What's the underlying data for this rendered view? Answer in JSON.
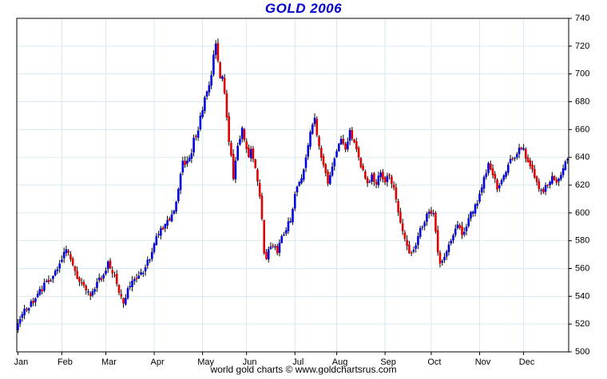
{
  "title": "GOLD 2006",
  "footer": "world gold charts © www.goldchartsrus.com",
  "colors": {
    "title": "#0000cc",
    "up": "#0000e0",
    "down": "#e00000",
    "wick": "#000000",
    "grid": "#d7e8f2",
    "axis": "#000000",
    "label": "#000000",
    "background": "#ffffff"
  },
  "chart_data": {
    "type": "candlestick_ohlc",
    "title": "GOLD 2006",
    "legend": "none",
    "grid": "on",
    "x_axis": {
      "months": [
        "Jan",
        "Feb",
        "Mar",
        "Apr",
        "May",
        "Jun",
        "Jul",
        "Aug",
        "Sep",
        "Oct",
        "Nov",
        "Dec"
      ],
      "month_start_day_index": [
        0,
        20,
        40,
        62,
        84,
        104,
        126,
        145,
        167,
        188,
        210,
        230
      ],
      "trading_days": 251
    },
    "y_axis": {
      "min": 500,
      "max": 740,
      "tick_step": 20,
      "ticks": [
        740,
        720,
        700,
        680,
        660,
        640,
        620,
        600,
        580,
        560,
        540,
        520,
        500
      ],
      "side": "right"
    },
    "key_points": [
      {
        "label": "year-start",
        "day": 0,
        "price": 521
      },
      {
        "label": "early-Feb high",
        "day": 22,
        "price": 575
      },
      {
        "label": "mid-Mar low",
        "day": 48,
        "price": 537
      },
      {
        "label": "mid-May peak",
        "day": 90,
        "price": 724
      },
      {
        "label": "mid-Jun low",
        "day": 113,
        "price": 565
      },
      {
        "label": "mid-Jul high",
        "day": 135,
        "price": 668
      },
      {
        "label": "early-Oct low",
        "day": 192,
        "price": 563
      },
      {
        "label": "early-Dec high",
        "day": 229,
        "price": 648
      },
      {
        "label": "year-end",
        "day": 250,
        "price": 637
      }
    ],
    "close_anchors": [
      [
        0,
        521
      ],
      [
        2,
        528
      ],
      [
        5,
        533
      ],
      [
        9,
        541
      ],
      [
        13,
        550
      ],
      [
        17,
        557
      ],
      [
        20,
        568
      ],
      [
        22,
        575
      ],
      [
        25,
        562
      ],
      [
        27,
        554
      ],
      [
        31,
        546
      ],
      [
        33,
        540
      ],
      [
        36,
        549
      ],
      [
        39,
        556
      ],
      [
        41,
        563
      ],
      [
        44,
        554
      ],
      [
        46,
        541
      ],
      [
        48,
        537
      ],
      [
        51,
        548
      ],
      [
        54,
        553
      ],
      [
        57,
        557
      ],
      [
        60,
        568
      ],
      [
        62,
        580
      ],
      [
        64,
        585
      ],
      [
        66,
        590
      ],
      [
        68,
        594
      ],
      [
        70,
        598
      ],
      [
        72,
        606
      ],
      [
        73,
        618
      ],
      [
        74,
        628
      ],
      [
        75,
        638
      ],
      [
        76,
        633
      ],
      [
        78,
        638
      ],
      [
        80,
        652
      ],
      [
        82,
        660
      ],
      [
        84,
        676
      ],
      [
        86,
        688
      ],
      [
        88,
        700
      ],
      [
        89,
        712
      ],
      [
        90,
        724
      ],
      [
        91,
        708
      ],
      [
        92,
        695
      ],
      [
        93,
        698
      ],
      [
        94,
        685
      ],
      [
        95,
        668
      ],
      [
        96,
        652
      ],
      [
        97,
        640
      ],
      [
        98,
        626
      ],
      [
        99,
        638
      ],
      [
        100,
        648
      ],
      [
        101,
        655
      ],
      [
        102,
        660
      ],
      [
        103,
        652
      ],
      [
        105,
        640
      ],
      [
        106,
        648
      ],
      [
        107,
        640
      ],
      [
        108,
        632
      ],
      [
        109,
        622
      ],
      [
        110,
        612
      ],
      [
        111,
        596
      ],
      [
        112,
        572
      ],
      [
        113,
        565
      ],
      [
        114,
        574
      ],
      [
        116,
        578
      ],
      [
        118,
        571
      ],
      [
        120,
        582
      ],
      [
        122,
        588
      ],
      [
        124,
        596
      ],
      [
        125,
        604
      ],
      [
        126,
        614
      ],
      [
        128,
        621
      ],
      [
        130,
        633
      ],
      [
        132,
        648
      ],
      [
        133,
        658
      ],
      [
        134,
        664
      ],
      [
        135,
        668
      ],
      [
        136,
        657
      ],
      [
        137,
        648
      ],
      [
        139,
        634
      ],
      [
        141,
        620
      ],
      [
        143,
        632
      ],
      [
        145,
        644
      ],
      [
        147,
        653
      ],
      [
        149,
        647
      ],
      [
        151,
        659
      ],
      [
        153,
        650
      ],
      [
        155,
        638
      ],
      [
        157,
        629
      ],
      [
        159,
        620
      ],
      [
        161,
        627
      ],
      [
        163,
        622
      ],
      [
        165,
        629
      ],
      [
        167,
        622
      ],
      [
        169,
        628
      ],
      [
        171,
        618
      ],
      [
        173,
        600
      ],
      [
        175,
        586
      ],
      [
        177,
        576
      ],
      [
        179,
        570
      ],
      [
        181,
        575
      ],
      [
        183,
        589
      ],
      [
        185,
        595
      ],
      [
        187,
        601
      ],
      [
        189,
        598
      ],
      [
        190,
        588
      ],
      [
        191,
        572
      ],
      [
        192,
        563
      ],
      [
        194,
        570
      ],
      [
        196,
        577
      ],
      [
        198,
        583
      ],
      [
        200,
        590
      ],
      [
        202,
        585
      ],
      [
        204,
        591
      ],
      [
        206,
        599
      ],
      [
        208,
        605
      ],
      [
        210,
        612
      ],
      [
        212,
        625
      ],
      [
        214,
        634
      ],
      [
        216,
        626
      ],
      [
        218,
        619
      ],
      [
        220,
        624
      ],
      [
        222,
        629
      ],
      [
        224,
        637
      ],
      [
        226,
        640
      ],
      [
        228,
        645
      ],
      [
        229,
        648
      ],
      [
        231,
        641
      ],
      [
        233,
        634
      ],
      [
        235,
        627
      ],
      [
        237,
        619
      ],
      [
        239,
        616
      ],
      [
        241,
        621
      ],
      [
        243,
        626
      ],
      [
        245,
        621
      ],
      [
        247,
        629
      ],
      [
        249,
        635
      ],
      [
        250,
        637
      ]
    ],
    "render": {
      "noise_close": 2.2,
      "gap_noise": 1.2,
      "wick_min": 0.4,
      "wick_max": 3.0,
      "seed": 3,
      "bar_body_width": 2.6
    }
  }
}
